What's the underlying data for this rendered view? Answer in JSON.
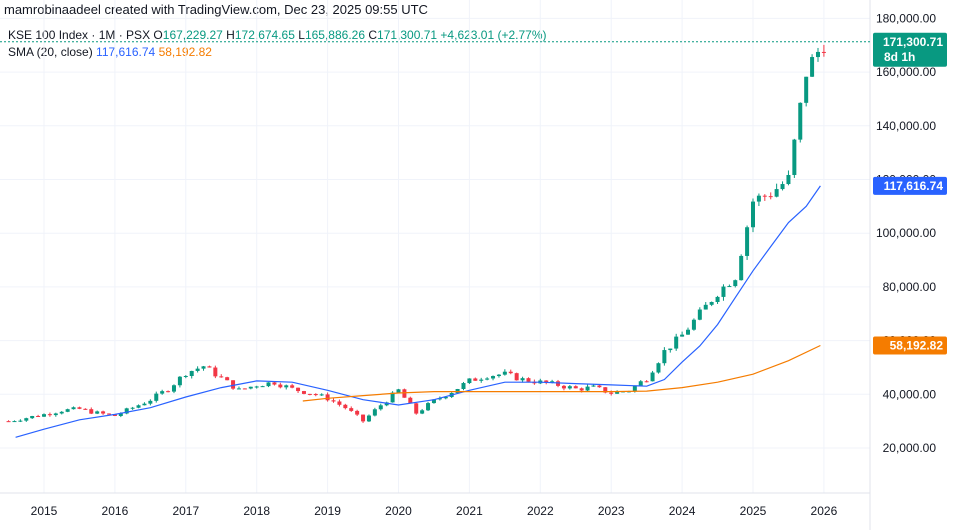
{
  "header": {
    "credit": "mamrobinaadeel created with TradingView.com, Dec 23, 2025 09:55 UTC"
  },
  "legend": {
    "symbol": "KSE 100 Index · 1M · PSX",
    "o_label": "O",
    "o_value": "167,229.27",
    "h_label": "H",
    "h_value": "172,674.65",
    "l_label": "L",
    "l_value": "165,886.26",
    "c_label": "C",
    "c_value": "171,300.71",
    "change": "+4,623.01 (+2.77%)",
    "sma_label": "SMA (20, close)",
    "sma_20_value": "117,616.74",
    "sma_second_value": "58,192.82"
  },
  "price_tags": {
    "last_price": "171,300.71",
    "countdown": "8d 1h",
    "sma_blue": "117,616.74",
    "sma_orange": "58,192.82"
  },
  "colors": {
    "up": "#089981",
    "down": "#f23645",
    "sma_blue": "#2962ff",
    "sma_orange": "#f57c00",
    "grid": "#f0f3fa",
    "axis_text": "#131722",
    "last_price_line": "#089981"
  },
  "chart_data": {
    "type": "line",
    "title": "KSE 100 Index · 1M · PSX",
    "ylim": [
      15000,
      190000
    ],
    "y_ticks": [
      20000,
      40000,
      60000,
      80000,
      100000,
      120000,
      140000,
      160000,
      180000
    ],
    "y_tick_labels": [
      "20,000.00",
      "40,000.00",
      "60,000.00",
      "80,000.00",
      "100,000.00",
      "120,000.00",
      "140,000.00",
      "160,000.00",
      "180,000.00"
    ],
    "x_tick_labels": [
      "2015",
      "2016",
      "2017",
      "2018",
      "2019",
      "2020",
      "2021",
      "2022",
      "2023",
      "2024",
      "2025",
      "2026"
    ],
    "x_ticks": [
      2015,
      2016,
      2017,
      2018,
      2019,
      2020,
      2021,
      2022,
      2023,
      2024,
      2025,
      2026
    ],
    "close_series": [
      [
        2014.5,
        30000
      ],
      [
        2015.0,
        32500
      ],
      [
        2015.25,
        34000
      ],
      [
        2015.5,
        34500
      ],
      [
        2015.75,
        33000
      ],
      [
        2016.0,
        32000
      ],
      [
        2016.25,
        35000
      ],
      [
        2016.5,
        38000
      ],
      [
        2016.75,
        42000
      ],
      [
        2017.0,
        48000
      ],
      [
        2017.25,
        50500
      ],
      [
        2017.5,
        46000
      ],
      [
        2017.75,
        41500
      ],
      [
        2018.0,
        43500
      ],
      [
        2018.25,
        44500
      ],
      [
        2018.5,
        42000
      ],
      [
        2018.75,
        40500
      ],
      [
        2019.0,
        38500
      ],
      [
        2019.25,
        35000
      ],
      [
        2019.5,
        30000
      ],
      [
        2019.75,
        36000
      ],
      [
        2020.0,
        41500
      ],
      [
        2020.25,
        33000
      ],
      [
        2020.5,
        37500
      ],
      [
        2020.75,
        41000
      ],
      [
        2021.0,
        45000
      ],
      [
        2021.25,
        47000
      ],
      [
        2021.5,
        47500
      ],
      [
        2021.75,
        45500
      ],
      [
        2022.0,
        44500
      ],
      [
        2022.25,
        43500
      ],
      [
        2022.5,
        42000
      ],
      [
        2022.75,
        42500
      ],
      [
        2023.0,
        40500
      ],
      [
        2023.25,
        41500
      ],
      [
        2023.5,
        46000
      ],
      [
        2023.75,
        56000
      ],
      [
        2024.0,
        62000
      ],
      [
        2024.25,
        70000
      ],
      [
        2024.5,
        78000
      ],
      [
        2024.75,
        84000
      ],
      [
        2025.0,
        112000
      ],
      [
        2025.25,
        115000
      ],
      [
        2025.5,
        120000
      ],
      [
        2025.75,
        160000
      ],
      [
        2026.0,
        171300
      ]
    ],
    "series": [
      {
        "name": "SMA (20, close)",
        "color": "#2962ff",
        "points": [
          [
            2014.6,
            24000
          ],
          [
            2015.0,
            27000
          ],
          [
            2015.5,
            30500
          ],
          [
            2016.0,
            32500
          ],
          [
            2016.5,
            35000
          ],
          [
            2017.0,
            39000
          ],
          [
            2017.5,
            42500
          ],
          [
            2018.0,
            45000
          ],
          [
            2018.5,
            44500
          ],
          [
            2019.0,
            41500
          ],
          [
            2019.5,
            38000
          ],
          [
            2020.0,
            36000
          ],
          [
            2020.5,
            38000
          ],
          [
            2021.0,
            41500
          ],
          [
            2021.5,
            44500
          ],
          [
            2022.0,
            44500
          ],
          [
            2022.5,
            44000
          ],
          [
            2023.0,
            43500
          ],
          [
            2023.5,
            43000
          ],
          [
            2023.75,
            45500
          ],
          [
            2024.0,
            52000
          ],
          [
            2024.25,
            58000
          ],
          [
            2024.5,
            66000
          ],
          [
            2024.75,
            76000
          ],
          [
            2025.0,
            86000
          ],
          [
            2025.25,
            95000
          ],
          [
            2025.5,
            104000
          ],
          [
            2025.75,
            110000
          ],
          [
            2025.95,
            117616.74
          ]
        ]
      },
      {
        "name": "SMA",
        "color": "#f57c00",
        "points": [
          [
            2018.65,
            37500
          ],
          [
            2019.0,
            38500
          ],
          [
            2019.5,
            39500
          ],
          [
            2020.0,
            40500
          ],
          [
            2020.5,
            41000
          ],
          [
            2021.0,
            41000
          ],
          [
            2021.5,
            41000
          ],
          [
            2022.0,
            41000
          ],
          [
            2022.5,
            41000
          ],
          [
            2023.0,
            41000
          ],
          [
            2023.5,
            41200
          ],
          [
            2024.0,
            42500
          ],
          [
            2024.5,
            44500
          ],
          [
            2025.0,
            47500
          ],
          [
            2025.5,
            52500
          ],
          [
            2025.95,
            58192.82
          ]
        ]
      }
    ],
    "last_price": 171300.71,
    "grid": true,
    "legend_position": "top-left"
  }
}
